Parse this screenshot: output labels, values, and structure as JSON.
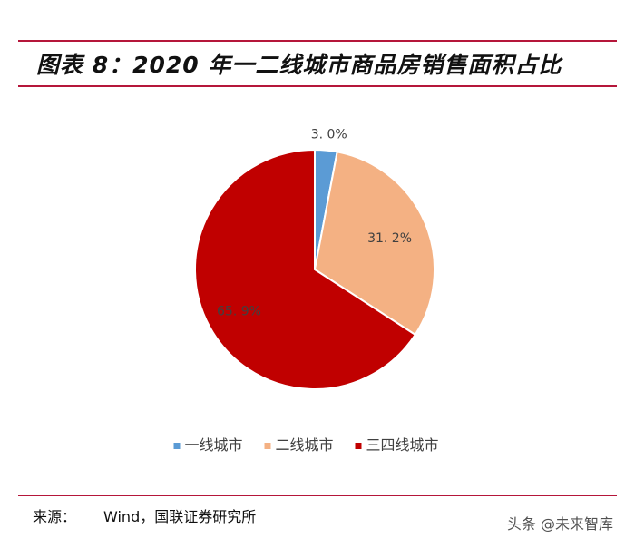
{
  "header": {
    "figure_title": "图表 8：2020 年一二线城市商品房销售面积占比"
  },
  "chart_data": {
    "type": "pie",
    "title": "",
    "categories": [
      "一线城市",
      "二线城市",
      "三四线城市"
    ],
    "values": [
      3.0,
      31.2,
      65.9
    ],
    "data_labels": [
      "3. 0%",
      "31. 2%",
      "65. 9%"
    ],
    "colors": [
      "#5b9bd5",
      "#f4b183",
      "#c00000"
    ],
    "start_angle": "12 o'clock",
    "direction": "clockwise",
    "legend_position": "bottom"
  },
  "footer": {
    "source_label": "来源：",
    "source_text": "Wind，国联证券研究所",
    "watermark_text": "头条 @未来智库"
  }
}
